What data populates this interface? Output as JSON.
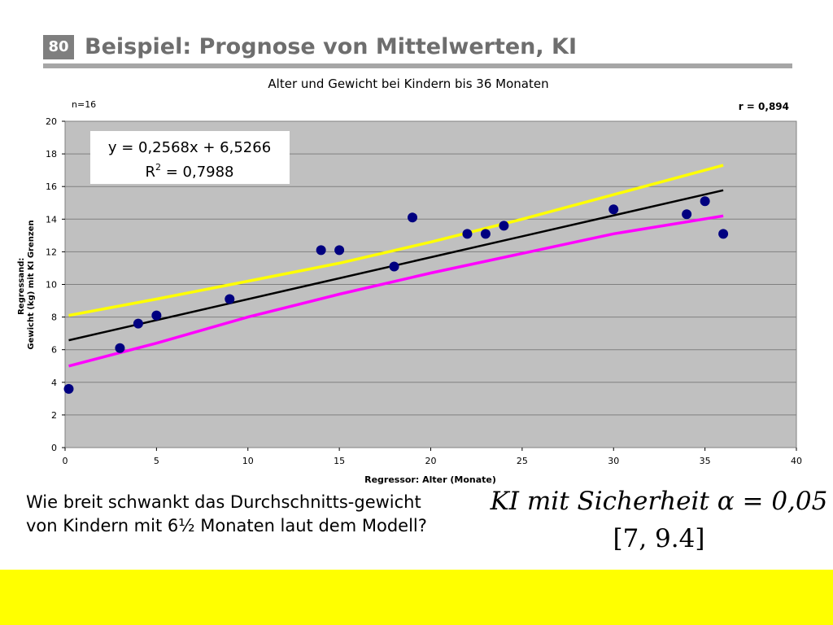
{
  "slide": {
    "number": "80",
    "title": "Beispiel: Prognose von Mittelwerten, KI"
  },
  "chart_data": {
    "type": "scatter",
    "title": "Alter und Gewicht bei Kindern bis 36 Monaten",
    "n_label": "n=16",
    "r_label": "r = 0,894",
    "xlabel": "Regressor: Alter (Monate)",
    "ylabel_line1": "Regressand:",
    "ylabel_line2": "Gewicht (kg)  mit KI Grenzen",
    "xlim": [
      0,
      40
    ],
    "ylim": [
      0,
      20
    ],
    "xticks": [
      0,
      5,
      10,
      15,
      20,
      25,
      30,
      35,
      40
    ],
    "yticks": [
      0,
      2,
      4,
      6,
      8,
      10,
      12,
      14,
      16,
      18,
      20
    ],
    "grid": true,
    "equation": "y = 0,2568x + 6,5266",
    "r2_prefix": "R",
    "r2_sup": "2",
    "r2_value": " = 0,7988",
    "points": [
      {
        "x": 0.2,
        "y": 3.6
      },
      {
        "x": 3,
        "y": 6.1
      },
      {
        "x": 4,
        "y": 7.6
      },
      {
        "x": 5,
        "y": 8.1
      },
      {
        "x": 9,
        "y": 9.1
      },
      {
        "x": 14,
        "y": 12.1
      },
      {
        "x": 15,
        "y": 12.1
      },
      {
        "x": 18,
        "y": 11.1
      },
      {
        "x": 19,
        "y": 14.1
      },
      {
        "x": 22,
        "y": 13.1
      },
      {
        "x": 23,
        "y": 13.1
      },
      {
        "x": 24,
        "y": 13.6
      },
      {
        "x": 30,
        "y": 14.6
      },
      {
        "x": 34,
        "y": 14.3
      },
      {
        "x": 35,
        "y": 15.1
      },
      {
        "x": 36,
        "y": 13.1
      }
    ],
    "regression": {
      "color": "#000000",
      "points": [
        {
          "x": 0.2,
          "y": 6.58
        },
        {
          "x": 36,
          "y": 15.77
        }
      ]
    },
    "upper_bound": {
      "color": "#ffff00",
      "points": [
        {
          "x": 0.2,
          "y": 8.1
        },
        {
          "x": 5,
          "y": 9.1
        },
        {
          "x": 10,
          "y": 10.2
        },
        {
          "x": 15,
          "y": 11.3
        },
        {
          "x": 20,
          "y": 12.6
        },
        {
          "x": 25,
          "y": 14.0
        },
        {
          "x": 30,
          "y": 15.5
        },
        {
          "x": 36,
          "y": 17.3
        }
      ]
    },
    "lower_bound": {
      "color": "#ff00ff",
      "points": [
        {
          "x": 0.2,
          "y": 5.0
        },
        {
          "x": 5,
          "y": 6.4
        },
        {
          "x": 10,
          "y": 8.0
        },
        {
          "x": 15,
          "y": 9.4
        },
        {
          "x": 20,
          "y": 10.7
        },
        {
          "x": 25,
          "y": 11.9
        },
        {
          "x": 30,
          "y": 13.1
        },
        {
          "x": 36,
          "y": 14.2
        }
      ]
    },
    "colors": {
      "plot_bg": "#c0c0c0",
      "marker": "#000080",
      "grid": "#808080"
    }
  },
  "question": {
    "text": "Wie breit schwankt das Durchschnitts-gewicht von Kindern mit 6½ Monaten laut dem Modell?"
  },
  "formula": {
    "label": "KI mit Sicherheit α = 0,05",
    "interval": "[7, 9.4]"
  },
  "colors": {
    "footer_band": "#ffff00",
    "title_text": "#6e6e6e"
  }
}
